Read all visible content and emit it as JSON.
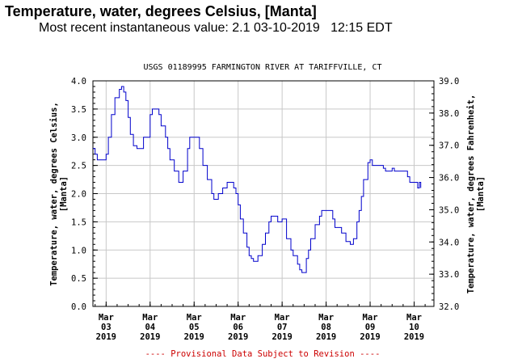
{
  "header": {
    "title": "Temperature, water, degrees Celsius, [Manta]",
    "subtitle": "Most recent instantaneous value: 2.1 03-10-2019   12:15 EDT"
  },
  "chart_data": {
    "type": "line",
    "title": "USGS 01189995 FARMINGTON RIVER AT TARIFFVILLE, CT",
    "ylabel_left": [
      "Temperature, water, degrees Celsius,",
      "[Manta]"
    ],
    "ylabel_right": [
      "Temperature, water, degrees Fahrenheit,",
      "[Manta]"
    ],
    "ylim_left": [
      0.0,
      4.0
    ],
    "ylim_right": [
      32.0,
      39.0
    ],
    "yticks_left": [
      "0.0",
      "0.5",
      "1.0",
      "1.5",
      "2.0",
      "2.5",
      "3.0",
      "3.5",
      "4.0"
    ],
    "yticks_right": [
      "32.0",
      "33.0",
      "34.0",
      "35.0",
      "36.0",
      "37.0",
      "38.0",
      "39.0"
    ],
    "xlim": [
      2.7,
      10.45
    ],
    "xticks": [
      {
        "x": 3,
        "line1": "Mar",
        "line2": "03",
        "line3": "2019"
      },
      {
        "x": 4,
        "line1": "Mar",
        "line2": "04",
        "line3": "2019"
      },
      {
        "x": 5,
        "line1": "Mar",
        "line2": "05",
        "line3": "2019"
      },
      {
        "x": 6,
        "line1": "Mar",
        "line2": "06",
        "line3": "2019"
      },
      {
        "x": 7,
        "line1": "Mar",
        "line2": "07",
        "line3": "2019"
      },
      {
        "x": 8,
        "line1": "Mar",
        "line2": "08",
        "line3": "2019"
      },
      {
        "x": 9,
        "line1": "Mar",
        "line2": "09",
        "line3": "2019"
      },
      {
        "x": 10,
        "line1": "Mar",
        "line2": "10",
        "line3": "2019"
      }
    ],
    "grid": true,
    "line_color": "#0000cc",
    "footnote": "---- Provisional Data Subject to Revision ----",
    "footnote_color": "#cc0000",
    "series": [
      {
        "x": [
          2.7,
          2.75,
          2.8,
          2.95,
          3.0,
          3.05,
          3.12,
          3.2,
          3.3,
          3.35,
          3.4,
          3.45,
          3.5,
          3.55,
          3.62,
          3.7,
          3.75,
          3.85,
          4.0,
          4.05,
          4.12,
          4.2,
          4.25,
          4.35,
          4.4,
          4.45,
          4.55,
          4.65,
          4.75,
          4.85,
          4.9,
          4.95,
          5.0,
          5.05,
          5.12,
          5.2,
          5.3,
          5.4,
          5.45,
          5.55,
          5.65,
          5.75,
          5.85,
          5.9,
          5.95,
          6.0,
          6.05,
          6.12,
          6.2,
          6.25,
          6.3,
          6.35,
          6.45,
          6.55,
          6.62,
          6.7,
          6.75,
          6.85,
          6.9,
          7.0,
          7.1,
          7.2,
          7.25,
          7.35,
          7.4,
          7.45,
          7.55,
          7.6,
          7.65,
          7.75,
          7.85,
          7.9,
          7.95,
          8.05,
          8.15,
          8.2,
          8.25,
          8.35,
          8.45,
          8.55,
          8.62,
          8.7,
          8.75,
          8.8,
          8.85,
          8.95,
          9.0,
          9.05,
          9.15,
          9.25,
          9.3,
          9.35,
          9.4,
          9.45,
          9.5,
          9.55,
          9.65,
          9.75,
          9.85,
          9.9,
          9.95,
          10.0,
          10.05,
          10.08,
          10.12,
          10.15
        ],
        "y": [
          2.8,
          2.7,
          2.6,
          2.6,
          2.7,
          3.0,
          3.4,
          3.7,
          3.85,
          3.9,
          3.8,
          3.65,
          3.35,
          3.05,
          2.85,
          2.8,
          2.8,
          3.0,
          3.4,
          3.5,
          3.5,
          3.4,
          3.2,
          3.0,
          2.8,
          2.6,
          2.4,
          2.2,
          2.4,
          2.8,
          3.0,
          3.0,
          3.0,
          3.0,
          2.8,
          2.5,
          2.25,
          2.0,
          1.9,
          2.0,
          2.1,
          2.2,
          2.2,
          2.1,
          2.0,
          1.8,
          1.55,
          1.3,
          1.05,
          0.9,
          0.85,
          0.8,
          0.9,
          1.1,
          1.3,
          1.5,
          1.6,
          1.6,
          1.5,
          1.55,
          1.2,
          1.0,
          0.9,
          0.75,
          0.65,
          0.6,
          0.85,
          1.0,
          1.2,
          1.45,
          1.6,
          1.7,
          1.7,
          1.7,
          1.55,
          1.4,
          1.4,
          1.3,
          1.15,
          1.1,
          1.2,
          1.5,
          1.7,
          1.95,
          2.25,
          2.55,
          2.6,
          2.5,
          2.5,
          2.5,
          2.45,
          2.4,
          2.4,
          2.4,
          2.45,
          2.4,
          2.4,
          2.4,
          2.3,
          2.2,
          2.2,
          2.2,
          2.2,
          2.1,
          2.2,
          2.1
        ]
      }
    ]
  }
}
